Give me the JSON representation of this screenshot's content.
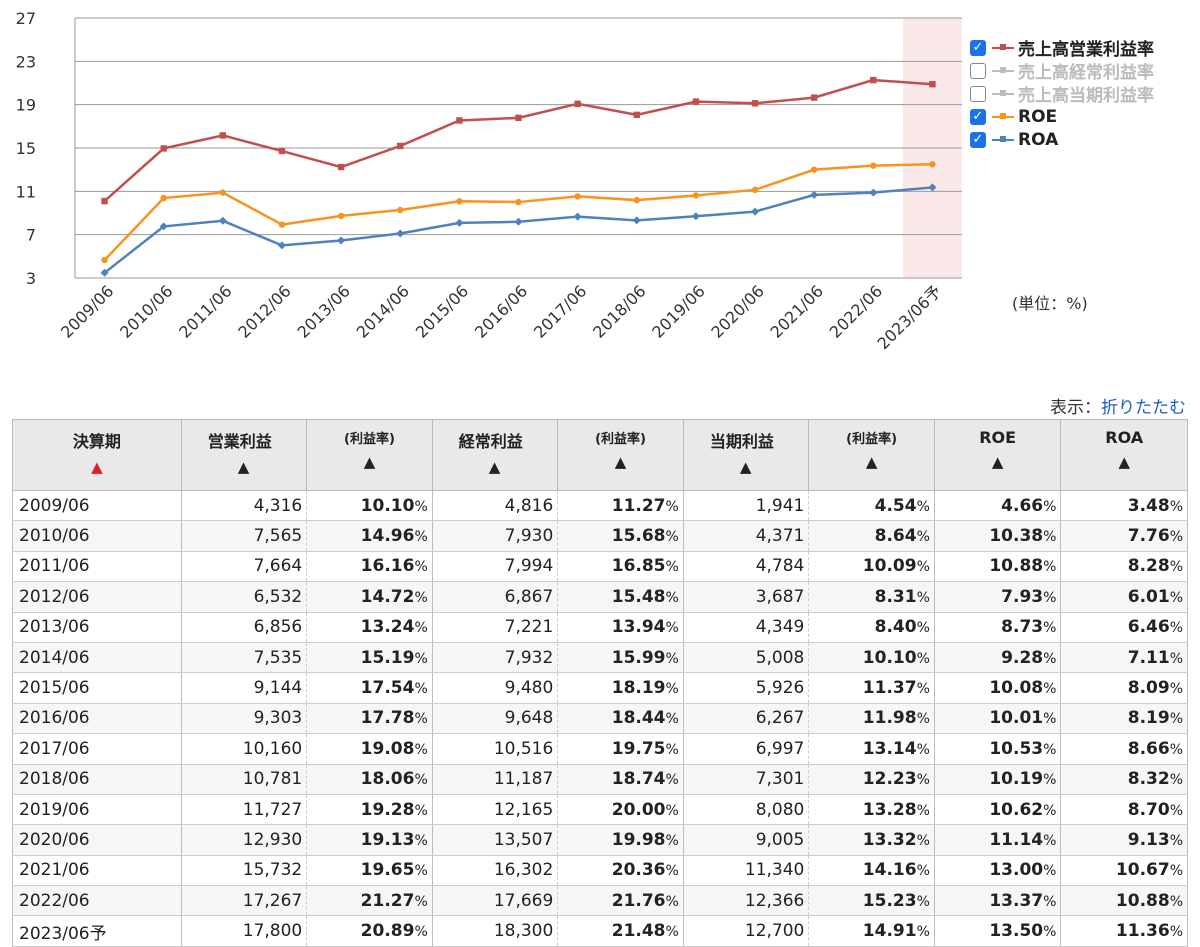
{
  "chart_data": {
    "type": "line",
    "categories": [
      "2009/06",
      "2010/06",
      "2011/06",
      "2012/06",
      "2013/06",
      "2014/06",
      "2015/06",
      "2016/06",
      "2017/06",
      "2018/06",
      "2019/06",
      "2020/06",
      "2021/06",
      "2022/06",
      "2023/06予"
    ],
    "ylim": [
      3,
      27
    ],
    "yticks": [
      3,
      7,
      11,
      15,
      19,
      23,
      27
    ],
    "grid": true,
    "legend_placement": "right",
    "highlight_last_category": true,
    "highlight_color": "#fbe9ea",
    "series": [
      {
        "name": "売上高営業利益率",
        "color": "#c0504d",
        "visible": true,
        "values": [
          10.1,
          14.96,
          16.16,
          14.72,
          13.24,
          15.19,
          17.54,
          17.78,
          19.08,
          18.06,
          19.28,
          19.13,
          19.65,
          21.27,
          20.89
        ]
      },
      {
        "name": "売上高経常利益率",
        "color": "#bdbdbd",
        "visible": false,
        "values": [
          11.27,
          15.68,
          16.85,
          15.48,
          13.94,
          15.99,
          18.19,
          18.44,
          19.75,
          18.74,
          20.0,
          19.98,
          20.36,
          21.76,
          21.48
        ]
      },
      {
        "name": "売上高当期利益率",
        "color": "#bdbdbd",
        "visible": false,
        "values": [
          4.54,
          8.64,
          10.09,
          8.31,
          8.4,
          10.1,
          11.37,
          11.98,
          13.14,
          12.23,
          13.28,
          13.32,
          14.16,
          15.23,
          14.91
        ]
      },
      {
        "name": "ROE",
        "color": "#f7931e",
        "visible": true,
        "values": [
          4.66,
          10.38,
          10.88,
          7.93,
          8.73,
          9.28,
          10.08,
          10.01,
          10.53,
          10.19,
          10.62,
          11.14,
          13.0,
          13.37,
          13.5
        ]
      },
      {
        "name": "ROA",
        "color": "#4f81bd",
        "visible": true,
        "values": [
          3.48,
          7.76,
          8.28,
          6.01,
          6.46,
          7.11,
          8.09,
          8.19,
          8.66,
          8.32,
          8.7,
          9.13,
          10.67,
          10.88,
          11.36
        ]
      }
    ]
  },
  "unit_label": "(単位：%)",
  "display_toggle": {
    "prefix": "表示：",
    "link": "折りたたむ"
  },
  "table": {
    "headers": {
      "period": "決算期",
      "op": "営業利益",
      "op_rate": "(利益率)",
      "ord": "経常利益",
      "ord_rate": "(利益率)",
      "net": "当期利益",
      "net_rate": "(利益率)",
      "roe": "ROE",
      "roa": "ROA"
    },
    "rows": [
      [
        "2009/06",
        "4,316",
        "10.10",
        "4,816",
        "11.27",
        "1,941",
        "4.54",
        "4.66",
        "3.48"
      ],
      [
        "2010/06",
        "7,565",
        "14.96",
        "7,930",
        "15.68",
        "4,371",
        "8.64",
        "10.38",
        "7.76"
      ],
      [
        "2011/06",
        "7,664",
        "16.16",
        "7,994",
        "16.85",
        "4,784",
        "10.09",
        "10.88",
        "8.28"
      ],
      [
        "2012/06",
        "6,532",
        "14.72",
        "6,867",
        "15.48",
        "3,687",
        "8.31",
        "7.93",
        "6.01"
      ],
      [
        "2013/06",
        "6,856",
        "13.24",
        "7,221",
        "13.94",
        "4,349",
        "8.40",
        "8.73",
        "6.46"
      ],
      [
        "2014/06",
        "7,535",
        "15.19",
        "7,932",
        "15.99",
        "5,008",
        "10.10",
        "9.28",
        "7.11"
      ],
      [
        "2015/06",
        "9,144",
        "17.54",
        "9,480",
        "18.19",
        "5,926",
        "11.37",
        "10.08",
        "8.09"
      ],
      [
        "2016/06",
        "9,303",
        "17.78",
        "9,648",
        "18.44",
        "6,267",
        "11.98",
        "10.01",
        "8.19"
      ],
      [
        "2017/06",
        "10,160",
        "19.08",
        "10,516",
        "19.75",
        "6,997",
        "13.14",
        "10.53",
        "8.66"
      ],
      [
        "2018/06",
        "10,781",
        "18.06",
        "11,187",
        "18.74",
        "7,301",
        "12.23",
        "10.19",
        "8.32"
      ],
      [
        "2019/06",
        "11,727",
        "19.28",
        "12,165",
        "20.00",
        "8,080",
        "13.28",
        "10.62",
        "8.70"
      ],
      [
        "2020/06",
        "12,930",
        "19.13",
        "13,507",
        "19.98",
        "9,005",
        "13.32",
        "11.14",
        "9.13"
      ],
      [
        "2021/06",
        "15,732",
        "19.65",
        "16,302",
        "20.36",
        "11,340",
        "14.16",
        "13.00",
        "10.67"
      ],
      [
        "2022/06",
        "17,267",
        "21.27",
        "17,669",
        "21.76",
        "12,366",
        "15.23",
        "13.37",
        "10.88"
      ],
      [
        "2023/06予",
        "17,800",
        "20.89",
        "18,300",
        "21.48",
        "12,700",
        "14.91",
        "13.50",
        "11.36"
      ]
    ]
  },
  "percent_sign": "%",
  "sort_arrow": "▲"
}
